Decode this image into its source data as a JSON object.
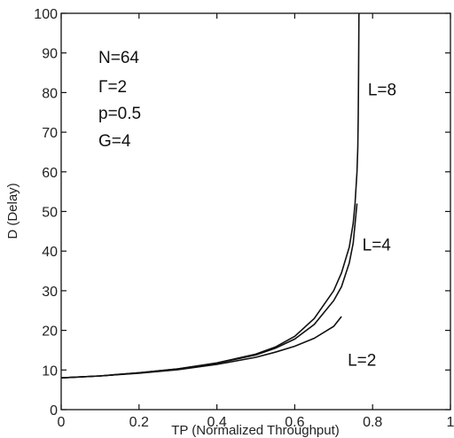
{
  "chart_data": {
    "type": "line",
    "title": "",
    "xlabel": "TP (Normalized Throughput)",
    "ylabel": "D (Delay)",
    "xlim": [
      0,
      1
    ],
    "ylim": [
      0,
      100
    ],
    "xticks": [
      0,
      0.2,
      0.4,
      0.6,
      0.8,
      1
    ],
    "xtick_labels": [
      "0",
      "0.2",
      "0.4",
      "0.6",
      "0.8",
      "1"
    ],
    "yticks": [
      0,
      10,
      20,
      30,
      40,
      50,
      60,
      70,
      80,
      90,
      100
    ],
    "ytick_labels": [
      "0",
      "10",
      "20",
      "30",
      "40",
      "50",
      "60",
      "70",
      "80",
      "90",
      "100"
    ],
    "grid": false,
    "annotations": [
      "N=64",
      "Γ=2",
      "p=0.5",
      "G=4"
    ],
    "series": [
      {
        "name": "L=8",
        "x": [
          0,
          0.1,
          0.2,
          0.3,
          0.4,
          0.5,
          0.55,
          0.6,
          0.65,
          0.7,
          0.72,
          0.74,
          0.75,
          0.755,
          0.76,
          0.762,
          0.763,
          0.764,
          0.765
        ],
        "y": [
          8.0,
          8.5,
          9.3,
          10.3,
          11.8,
          14.0,
          15.8,
          18.5,
          23.0,
          30.0,
          34.5,
          41.0,
          47.0,
          52.0,
          60.0,
          66.0,
          74.0,
          85.0,
          100.0
        ]
      },
      {
        "name": "L=4",
        "x": [
          0,
          0.1,
          0.2,
          0.3,
          0.4,
          0.5,
          0.55,
          0.6,
          0.65,
          0.7,
          0.72,
          0.74,
          0.75,
          0.76
        ],
        "y": [
          8.0,
          8.5,
          9.3,
          10.3,
          11.7,
          13.8,
          15.5,
          17.8,
          21.5,
          27.5,
          31.0,
          37.0,
          42.0,
          52.0
        ]
      },
      {
        "name": "L=2",
        "x": [
          0,
          0.1,
          0.2,
          0.3,
          0.4,
          0.5,
          0.55,
          0.6,
          0.65,
          0.7,
          0.72
        ],
        "y": [
          8.0,
          8.5,
          9.2,
          10.1,
          11.4,
          13.2,
          14.5,
          16.0,
          18.0,
          21.0,
          23.5
        ]
      }
    ]
  }
}
